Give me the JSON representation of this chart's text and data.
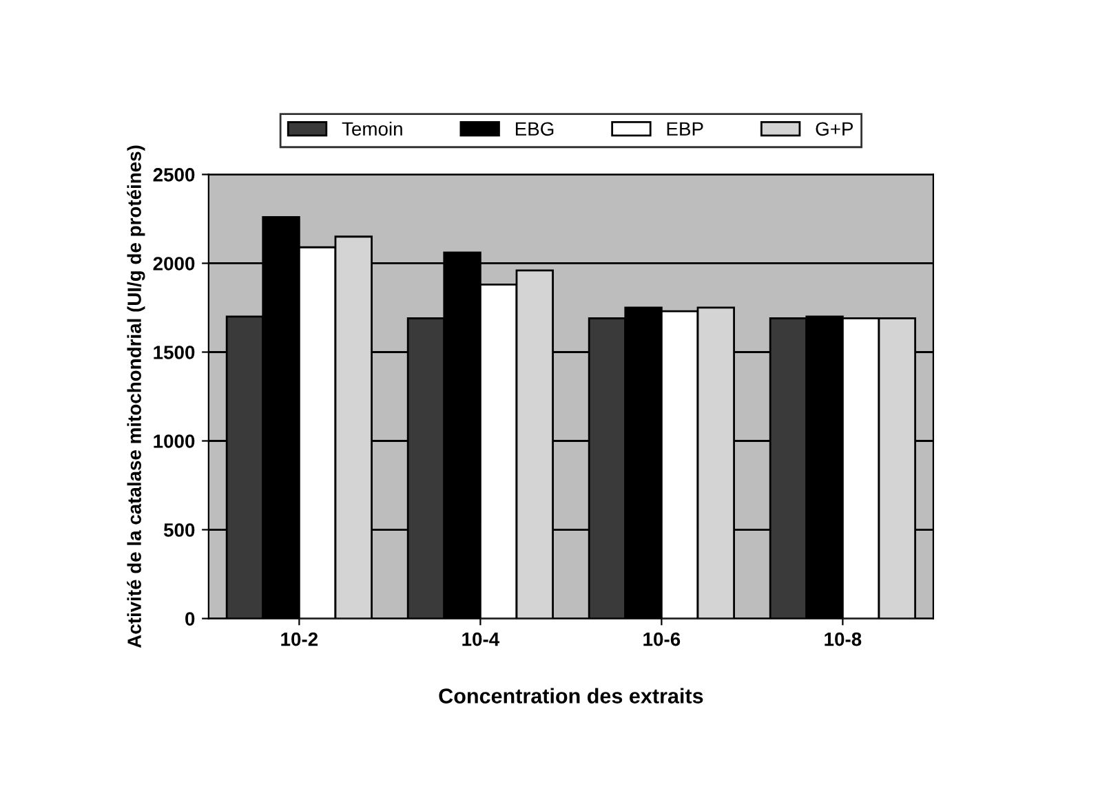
{
  "chart_data": {
    "type": "bar",
    "xlabel": "Concentration des extraits",
    "ylabel": "Activité de la catalase mitochondrial (UI/g de protéines)",
    "categories": [
      "10-2",
      "10-4",
      "10-6",
      "10-8"
    ],
    "series": [
      {
        "name": "Temoin",
        "color": "#3a3a3a",
        "values": [
          1700,
          1690,
          1690,
          1690
        ]
      },
      {
        "name": "EBG",
        "color": "#000000",
        "values": [
          2260,
          2060,
          1750,
          1700
        ]
      },
      {
        "name": "EBP",
        "color": "#ffffff",
        "values": [
          2090,
          1880,
          1730,
          1690
        ]
      },
      {
        "name": "G+P",
        "color": "#d4d4d4",
        "values": [
          2150,
          1960,
          1750,
          1690
        ]
      }
    ],
    "ylim": [
      0,
      2500
    ],
    "yticks": [
      0,
      500,
      1000,
      1500,
      2000,
      2500
    ],
    "grid": "y",
    "legend": "top"
  }
}
